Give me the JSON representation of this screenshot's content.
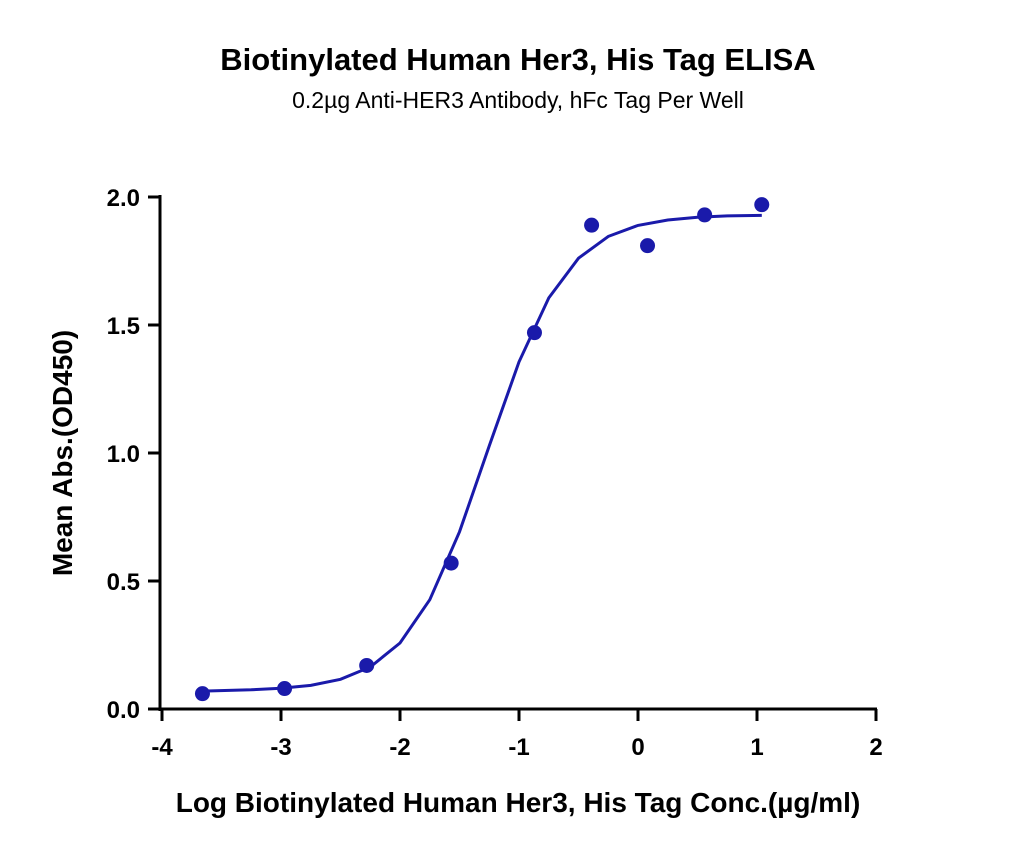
{
  "chart_data": {
    "type": "scatter",
    "title": "Biotinylated Human Her3, His Tag ELISA",
    "subtitle": "0.2µg Anti-HER3 Antibody, hFc Tag Per Well",
    "x_label": "Log Biotinylated Human Her3, His Tag Conc.(µg/ml)",
    "y_label": "Mean Abs.(OD450)",
    "x": [
      -3.66,
      -2.97,
      -2.28,
      -1.57,
      -0.87,
      -0.39,
      0.08,
      0.56,
      1.04
    ],
    "values": [
      0.06,
      0.08,
      0.17,
      0.57,
      1.47,
      1.89,
      1.81,
      1.93,
      1.97
    ],
    "color": "#1a1aaa",
    "curve": {
      "x": [
        -3.66,
        -3.25,
        -3,
        -2.75,
        -2.5,
        -2.25,
        -2,
        -1.75,
        -1.5,
        -1.25,
        -1,
        -0.75,
        -0.5,
        -0.25,
        0,
        0.25,
        0.5,
        0.75,
        1.04
      ],
      "values": [
        0.07,
        0.075,
        0.081,
        0.092,
        0.116,
        0.164,
        0.258,
        0.427,
        0.692,
        1.028,
        1.356,
        1.606,
        1.761,
        1.846,
        1.889,
        1.91,
        1.921,
        1.926,
        1.928
      ],
      "color": "#1a1aaa"
    },
    "xlim": [
      -4,
      2
    ],
    "xticks": [
      -4,
      -3,
      -2,
      -1,
      0,
      1,
      2
    ],
    "ylim": [
      0,
      2
    ],
    "yticks": [
      {
        "value": 0,
        "label": "0.0"
      },
      0.5,
      {
        "value": 1,
        "label": "1.0"
      },
      1.5,
      {
        "value": 2,
        "label": "2.0"
      }
    ]
  }
}
